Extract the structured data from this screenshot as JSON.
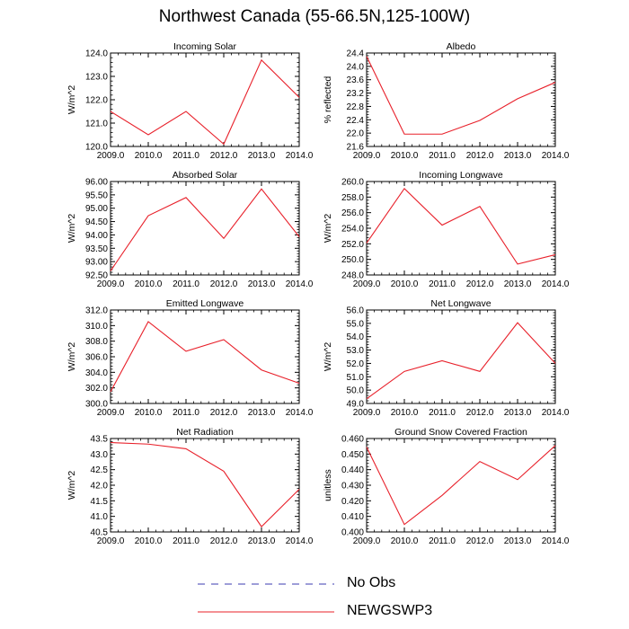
{
  "title": "Northwest Canada (55-66.5N,125-100W)",
  "colors": {
    "model": "#e8202a",
    "obs": "#3b3bb0",
    "axis": "#000000"
  },
  "legend": [
    {
      "label": "No Obs",
      "style": "dashed",
      "color": "#3b3bb0"
    },
    {
      "label": "NEWGSWP3",
      "style": "solid",
      "color": "#e8202a"
    }
  ],
  "chart_data": [
    {
      "type": "line",
      "title": "Incoming Solar",
      "ylabel": "W/m^2",
      "x": [
        2009,
        2010,
        2011,
        2012,
        2013,
        2014
      ],
      "xticks": [
        "2009.0",
        "2010.0",
        "2011.0",
        "2012.0",
        "2013.0",
        "2014.0"
      ],
      "ylim": [
        120.0,
        124.0
      ],
      "yticks": [
        "120.0",
        "121.0",
        "122.0",
        "123.0",
        "124.0"
      ],
      "series": [
        {
          "name": "NEWGSWP3",
          "values": [
            121.5,
            120.5,
            121.5,
            120.1,
            123.7,
            122.1
          ]
        }
      ]
    },
    {
      "type": "line",
      "title": "Albedo",
      "ylabel": "% reflected",
      "x": [
        2009,
        2010,
        2011,
        2012,
        2013,
        2014
      ],
      "xticks": [
        "2009.0",
        "2010.0",
        "2011.0",
        "2012.0",
        "2013.0",
        "2014.0"
      ],
      "ylim": [
        21.6,
        24.4
      ],
      "yticks": [
        "21.6",
        "22.0",
        "22.4",
        "22.8",
        "23.2",
        "23.6",
        "24.0",
        "24.4"
      ],
      "series": [
        {
          "name": "NEWGSWP3",
          "values": [
            24.3,
            21.97,
            21.97,
            22.38,
            23.03,
            23.52
          ]
        }
      ]
    },
    {
      "type": "line",
      "title": "Absorbed Solar",
      "ylabel": "W/m^2",
      "x": [
        2009,
        2010,
        2011,
        2012,
        2013,
        2014
      ],
      "xticks": [
        "2009.0",
        "2010.0",
        "2011.0",
        "2012.0",
        "2013.0",
        "2014.0"
      ],
      "ylim": [
        92.5,
        96.0
      ],
      "yticks": [
        "92.50",
        "93.00",
        "93.50",
        "94.00",
        "94.50",
        "95.00",
        "95.50",
        "96.00"
      ],
      "series": [
        {
          "name": "NEWGSWP3",
          "values": [
            92.65,
            94.72,
            95.4,
            93.87,
            95.72,
            93.93
          ]
        }
      ]
    },
    {
      "type": "line",
      "title": "Incoming Longwave",
      "ylabel": "W/m^2",
      "x": [
        2009,
        2010,
        2011,
        2012,
        2013,
        2014
      ],
      "xticks": [
        "2009.0",
        "2010.0",
        "2011.0",
        "2012.0",
        "2013.0",
        "2014.0"
      ],
      "ylim": [
        248.0,
        260.0
      ],
      "yticks": [
        "248.0",
        "250.0",
        "252.0",
        "254.0",
        "256.0",
        "258.0",
        "260.0"
      ],
      "series": [
        {
          "name": "NEWGSWP3",
          "values": [
            252.1,
            259.1,
            254.4,
            256.8,
            249.4,
            250.6
          ]
        }
      ]
    },
    {
      "type": "line",
      "title": "Emitted Longwave",
      "ylabel": "W/m^2",
      "x": [
        2009,
        2010,
        2011,
        2012,
        2013,
        2014
      ],
      "xticks": [
        "2009.0",
        "2010.0",
        "2011.0",
        "2012.0",
        "2013.0",
        "2014.0"
      ],
      "ylim": [
        300.0,
        312.0
      ],
      "yticks": [
        "300.0",
        "302.0",
        "304.0",
        "306.0",
        "308.0",
        "310.0",
        "312.0"
      ],
      "series": [
        {
          "name": "NEWGSWP3",
          "values": [
            301.5,
            310.5,
            306.7,
            308.2,
            304.3,
            302.6
          ]
        }
      ]
    },
    {
      "type": "line",
      "title": "Net Longwave",
      "ylabel": "W/m^2",
      "x": [
        2009,
        2010,
        2011,
        2012,
        2013,
        2014
      ],
      "xticks": [
        "2009.0",
        "2010.0",
        "2011.0",
        "2012.0",
        "2013.0",
        "2014.0"
      ],
      "ylim": [
        49.0,
        56.0
      ],
      "yticks": [
        "49.0",
        "50.0",
        "51.0",
        "52.0",
        "53.0",
        "54.0",
        "55.0",
        "56.0"
      ],
      "series": [
        {
          "name": "NEWGSWP3",
          "values": [
            49.35,
            51.4,
            52.2,
            51.4,
            55.05,
            52.0
          ]
        }
      ]
    },
    {
      "type": "line",
      "title": "Net Radiation",
      "ylabel": "W/m^2",
      "x": [
        2009,
        2010,
        2011,
        2012,
        2013,
        2014
      ],
      "xticks": [
        "2009.0",
        "2010.0",
        "2011.0",
        "2012.0",
        "2013.0",
        "2014.0"
      ],
      "ylim": [
        40.5,
        43.5
      ],
      "yticks": [
        "40.5",
        "41.0",
        "41.5",
        "42.0",
        "42.5",
        "43.0",
        "43.5"
      ],
      "series": [
        {
          "name": "NEWGSWP3",
          "values": [
            43.37,
            43.32,
            43.17,
            42.45,
            40.67,
            41.87
          ]
        }
      ]
    },
    {
      "type": "line",
      "title": "Ground Snow Covered Fraction",
      "ylabel": "unitless",
      "x": [
        2009,
        2010,
        2011,
        2012,
        2013,
        2014
      ],
      "xticks": [
        "2009.0",
        "2010.0",
        "2011.0",
        "2012.0",
        "2013.0",
        "2014.0"
      ],
      "ylim": [
        0.4,
        0.46
      ],
      "yticks": [
        "0.400",
        "0.410",
        "0.420",
        "0.430",
        "0.440",
        "0.450",
        "0.460"
      ],
      "series": [
        {
          "name": "NEWGSWP3",
          "values": [
            0.4545,
            0.4048,
            0.4235,
            0.4452,
            0.4336,
            0.4555
          ]
        }
      ]
    }
  ]
}
